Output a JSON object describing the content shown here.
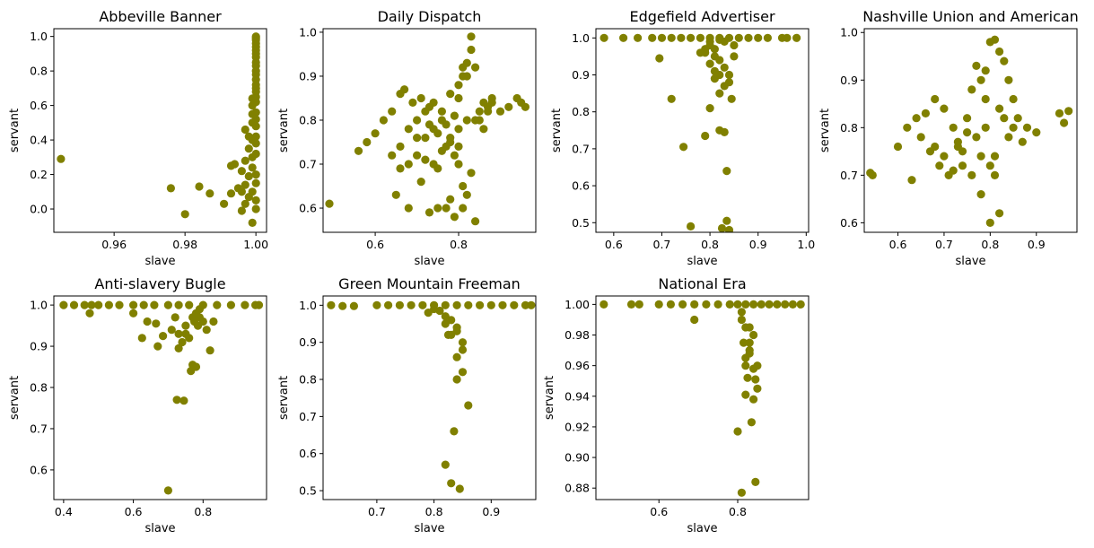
{
  "marker_color": "#808000",
  "chart_data": [
    {
      "type": "scatter",
      "title": "Abbeville Banner",
      "xlabel": "slave",
      "ylabel": "servant",
      "xlim": [
        0.943,
        1.003
      ],
      "ylim": [
        -0.135,
        1.045
      ],
      "xticks": [
        0.96,
        0.98,
        1.0
      ],
      "xtick_labels": [
        "0.96",
        "0.98",
        "1.00"
      ],
      "yticks": [
        0.0,
        0.2,
        0.4,
        0.6,
        0.8,
        1.0
      ],
      "ytick_labels": [
        "0.0",
        "0.2",
        "0.4",
        "0.6",
        "0.8",
        "1.0"
      ],
      "grid": false,
      "x": [
        0.945,
        0.976,
        0.98,
        0.984,
        0.987,
        0.991,
        0.993,
        0.993,
        0.994,
        0.995,
        0.996,
        0.996,
        0.997,
        0.997,
        0.998,
        0.998,
        0.998,
        0.999,
        0.999,
        0.999,
        0.999,
        0.999,
        0.999,
        0.999,
        0.999,
        1.0,
        1.0,
        1.0,
        1.0,
        1.0,
        1.0,
        1.0,
        1.0,
        1.0,
        1.0,
        1.0,
        1.0,
        1.0,
        1.0,
        1.0,
        1.0,
        1.0,
        1.0,
        1.0,
        1.0,
        1.0,
        1.0,
        1.0,
        1.0,
        1.0,
        1.0,
        1.0,
        1.0,
        0.999,
        0.998,
        0.997,
        0.997,
        0.996
      ],
      "y": [
        0.29,
        0.12,
        -0.03,
        0.13,
        0.09,
        0.03,
        0.09,
        0.25,
        0.26,
        0.12,
        -0.01,
        0.1,
        0.03,
        0.46,
        0.07,
        0.19,
        0.35,
        -0.08,
        0.1,
        0.4,
        0.5,
        0.55,
        0.24,
        0.3,
        0.6,
        0.0,
        0.05,
        0.15,
        0.2,
        0.32,
        0.38,
        0.42,
        0.48,
        0.52,
        0.56,
        0.62,
        0.65,
        0.68,
        0.7,
        0.72,
        0.75,
        0.78,
        0.8,
        0.83,
        0.85,
        0.88,
        0.9,
        0.92,
        0.94,
        0.96,
        0.98,
        1.0,
        0.99,
        0.64,
        0.42,
        0.28,
        0.14,
        0.22
      ]
    },
    {
      "type": "scatter",
      "title": "Daily Dispatch",
      "xlabel": "slave",
      "ylabel": "servant",
      "xlim": [
        0.475,
        0.985
      ],
      "ylim": [
        0.545,
        1.008
      ],
      "xticks": [
        0.6,
        0.8
      ],
      "xtick_labels": [
        "0.6",
        "0.8"
      ],
      "yticks": [
        0.6,
        0.7,
        0.8,
        0.9,
        1.0
      ],
      "ytick_labels": [
        "0.6",
        "0.7",
        "0.8",
        "0.9",
        "1.0"
      ],
      "grid": false,
      "x": [
        0.49,
        0.56,
        0.58,
        0.6,
        0.62,
        0.64,
        0.65,
        0.66,
        0.66,
        0.67,
        0.68,
        0.68,
        0.69,
        0.7,
        0.7,
        0.71,
        0.71,
        0.72,
        0.72,
        0.73,
        0.73,
        0.74,
        0.74,
        0.75,
        0.75,
        0.76,
        0.76,
        0.77,
        0.77,
        0.78,
        0.78,
        0.79,
        0.79,
        0.8,
        0.8,
        0.81,
        0.81,
        0.82,
        0.82,
        0.83,
        0.83,
        0.84,
        0.85,
        0.86,
        0.87,
        0.88,
        0.9,
        0.92,
        0.94,
        0.95,
        0.96,
        0.74,
        0.76,
        0.78,
        0.8,
        0.82,
        0.84,
        0.79,
        0.81,
        0.83,
        0.8,
        0.82,
        0.75,
        0.77,
        0.72,
        0.7,
        0.73,
        0.78,
        0.8,
        0.81,
        0.84,
        0.86,
        0.66,
        0.68,
        0.64,
        0.85,
        0.87,
        0.88
      ],
      "y": [
        0.61,
        0.73,
        0.75,
        0.77,
        0.8,
        0.82,
        0.63,
        0.86,
        0.69,
        0.87,
        0.6,
        0.78,
        0.84,
        0.72,
        0.8,
        0.66,
        0.85,
        0.76,
        0.82,
        0.59,
        0.79,
        0.7,
        0.84,
        0.6,
        0.77,
        0.73,
        0.82,
        0.6,
        0.79,
        0.62,
        0.75,
        0.58,
        0.81,
        0.7,
        0.85,
        0.6,
        0.92,
        0.63,
        0.93,
        0.96,
        0.99,
        0.57,
        0.82,
        0.84,
        0.83,
        0.85,
        0.82,
        0.83,
        0.85,
        0.84,
        0.83,
        0.78,
        0.8,
        0.76,
        0.88,
        0.9,
        0.92,
        0.72,
        0.65,
        0.68,
        0.78,
        0.8,
        0.69,
        0.74,
        0.71,
        0.76,
        0.83,
        0.86,
        0.74,
        0.9,
        0.8,
        0.78,
        0.74,
        0.7,
        0.72,
        0.8,
        0.82,
        0.84
      ]
    },
    {
      "type": "scatter",
      "title": "Edgefield Advertiser",
      "xlabel": "slave",
      "ylabel": "servant",
      "xlim": [
        0.563,
        1.005
      ],
      "ylim": [
        0.474,
        1.025
      ],
      "xticks": [
        0.6,
        0.7,
        0.8,
        0.9,
        1.0
      ],
      "xtick_labels": [
        "0.6",
        "0.7",
        "0.8",
        "0.9",
        "1.0"
      ],
      "yticks": [
        0.5,
        0.6,
        0.7,
        0.8,
        0.9,
        1.0
      ],
      "ytick_labels": [
        "0.5",
        "0.6",
        "0.7",
        "0.8",
        "0.9",
        "1.0"
      ],
      "grid": false,
      "x": [
        0.58,
        0.62,
        0.65,
        0.68,
        0.7,
        0.72,
        0.74,
        0.76,
        0.78,
        0.8,
        0.82,
        0.84,
        0.86,
        0.88,
        0.9,
        0.92,
        0.95,
        0.96,
        0.98,
        0.695,
        0.72,
        0.745,
        0.76,
        0.79,
        0.8,
        0.82,
        0.825,
        0.83,
        0.835,
        0.835,
        0.84,
        0.845,
        0.82,
        0.81,
        0.8,
        0.79,
        0.83,
        0.84,
        0.85,
        0.82,
        0.81,
        0.83,
        0.8,
        0.82,
        0.83,
        0.79,
        0.81,
        0.84,
        0.78,
        0.85,
        0.8,
        0.82,
        0.81
      ],
      "y": [
        1.0,
        1.0,
        1.0,
        1.0,
        1.0,
        1.0,
        1.0,
        1.0,
        1.0,
        1.0,
        1.0,
        1.0,
        1.0,
        1.0,
        1.0,
        1.0,
        1.0,
        1.0,
        1.0,
        0.945,
        0.835,
        0.705,
        0.49,
        0.735,
        0.81,
        0.75,
        0.485,
        0.745,
        0.64,
        0.505,
        0.48,
        0.835,
        0.85,
        0.89,
        0.93,
        0.96,
        0.87,
        0.88,
        0.95,
        0.9,
        0.97,
        0.99,
        0.98,
        0.94,
        0.92,
        0.97,
        0.95,
        0.9,
        0.96,
        0.98,
        0.99,
        0.995,
        0.91
      ]
    },
    {
      "type": "scatter",
      "title": "Nashville Union and American",
      "xlabel": "slave",
      "ylabel": "servant",
      "xlim": [
        0.527,
        0.988
      ],
      "ylim": [
        0.58,
        1.008
      ],
      "xticks": [
        0.6,
        0.7,
        0.8,
        0.9
      ],
      "xtick_labels": [
        "0.6",
        "0.7",
        "0.8",
        "0.9"
      ],
      "yticks": [
        0.6,
        0.7,
        0.8,
        0.9,
        1.0
      ],
      "ytick_labels": [
        "0.6",
        "0.7",
        "0.8",
        "0.9",
        "1.0"
      ],
      "grid": false,
      "x": [
        0.54,
        0.545,
        0.6,
        0.62,
        0.63,
        0.64,
        0.65,
        0.66,
        0.67,
        0.68,
        0.69,
        0.7,
        0.71,
        0.72,
        0.73,
        0.74,
        0.75,
        0.76,
        0.77,
        0.78,
        0.79,
        0.8,
        0.81,
        0.82,
        0.83,
        0.84,
        0.85,
        0.86,
        0.88,
        0.9,
        0.95,
        0.96,
        0.97,
        0.8,
        0.81,
        0.82,
        0.78,
        0.79,
        0.77,
        0.83,
        0.84,
        0.76,
        0.74,
        0.72,
        0.7,
        0.68,
        0.85,
        0.87,
        0.8,
        0.81,
        0.79,
        0.82,
        0.78,
        0.75,
        0.73
      ],
      "y": [
        0.705,
        0.7,
        0.76,
        0.8,
        0.69,
        0.82,
        0.78,
        0.83,
        0.75,
        0.86,
        0.72,
        0.84,
        0.7,
        0.8,
        0.76,
        0.72,
        0.82,
        0.7,
        0.78,
        0.66,
        0.8,
        0.6,
        0.74,
        0.62,
        0.82,
        0.78,
        0.8,
        0.82,
        0.8,
        0.79,
        0.83,
        0.81,
        0.835,
        0.98,
        0.985,
        0.96,
        0.9,
        0.92,
        0.93,
        0.94,
        0.9,
        0.88,
        0.75,
        0.71,
        0.74,
        0.76,
        0.86,
        0.77,
        0.72,
        0.7,
        0.86,
        0.84,
        0.74,
        0.79,
        0.77
      ]
    },
    {
      "type": "scatter",
      "title": "Anti-slavery Bugle",
      "xlabel": "slave",
      "ylabel": "servant",
      "xlim": [
        0.372,
        0.982
      ],
      "ylim": [
        0.528,
        1.022
      ],
      "xticks": [
        0.4,
        0.6,
        0.8
      ],
      "xtick_labels": [
        "0.4",
        "0.6",
        "0.8"
      ],
      "yticks": [
        0.6,
        0.7,
        0.8,
        0.9,
        1.0
      ],
      "ytick_labels": [
        "0.6",
        "0.7",
        "0.8",
        "0.9",
        "1.0"
      ],
      "grid": false,
      "x": [
        0.4,
        0.43,
        0.46,
        0.48,
        0.5,
        0.53,
        0.56,
        0.6,
        0.63,
        0.66,
        0.7,
        0.73,
        0.76,
        0.8,
        0.84,
        0.88,
        0.92,
        0.95,
        0.96,
        0.475,
        0.6,
        0.625,
        0.64,
        0.665,
        0.67,
        0.685,
        0.7,
        0.71,
        0.725,
        0.73,
        0.745,
        0.75,
        0.765,
        0.77,
        0.775,
        0.78,
        0.785,
        0.79,
        0.8,
        0.82,
        0.74,
        0.76,
        0.78,
        0.72,
        0.81,
        0.79,
        0.77,
        0.83,
        0.75,
        0.73
      ],
      "y": [
        1.0,
        1.0,
        1.0,
        1.0,
        1.0,
        1.0,
        1.0,
        1.0,
        1.0,
        1.0,
        1.0,
        1.0,
        1.0,
        1.0,
        1.0,
        1.0,
        1.0,
        1.0,
        1.0,
        0.98,
        0.98,
        0.92,
        0.96,
        0.955,
        0.9,
        0.925,
        0.55,
        0.94,
        0.77,
        0.895,
        0.768,
        0.93,
        0.84,
        0.855,
        0.96,
        0.85,
        0.95,
        0.97,
        0.96,
        0.89,
        0.91,
        0.92,
        0.98,
        0.97,
        0.94,
        0.99,
        0.97,
        0.96,
        0.95,
        0.93
      ]
    },
    {
      "type": "scatter",
      "title": "Green Mountain Freeman",
      "xlabel": "slave",
      "ylabel": "servant",
      "xlim": [
        0.606,
        0.978
      ],
      "ylim": [
        0.476,
        1.025
      ],
      "xticks": [
        0.7,
        0.8,
        0.9
      ],
      "xtick_labels": [
        "0.7",
        "0.8",
        "0.9"
      ],
      "yticks": [
        0.5,
        0.6,
        0.7,
        0.8,
        0.9,
        1.0
      ],
      "ytick_labels": [
        "0.5",
        "0.6",
        "0.7",
        "0.8",
        "0.9",
        "1.0"
      ],
      "grid": false,
      "x": [
        0.62,
        0.64,
        0.66,
        0.7,
        0.72,
        0.74,
        0.76,
        0.78,
        0.8,
        0.82,
        0.84,
        0.86,
        0.88,
        0.9,
        0.92,
        0.94,
        0.96,
        0.97,
        0.79,
        0.8,
        0.82,
        0.825,
        0.83,
        0.835,
        0.84,
        0.84,
        0.845,
        0.85,
        0.86,
        0.83,
        0.84,
        0.82,
        0.85,
        0.81,
        0.83,
        0.84,
        0.85,
        0.82
      ],
      "y": [
        1.0,
        0.998,
        0.998,
        1.0,
        1.0,
        1.0,
        1.0,
        1.0,
        1.0,
        1.0,
        1.0,
        1.0,
        1.0,
        1.0,
        1.0,
        1.0,
        1.0,
        1.0,
        0.98,
        0.99,
        0.57,
        0.92,
        0.52,
        0.66,
        0.86,
        0.8,
        0.505,
        0.82,
        0.73,
        0.92,
        0.94,
        0.97,
        0.9,
        0.985,
        0.96,
        0.93,
        0.88,
        0.95
      ]
    },
    {
      "type": "scatter",
      "title": "National Era",
      "xlabel": "slave",
      "ylabel": "servant",
      "xlim": [
        0.44,
        0.98
      ],
      "ylim": [
        0.8725,
        1.0055
      ],
      "xticks": [
        0.6,
        0.8
      ],
      "xtick_labels": [
        "0.6",
        "0.8"
      ],
      "yticks": [
        0.88,
        0.9,
        0.92,
        0.94,
        0.96,
        0.98,
        1.0
      ],
      "ytick_labels": [
        "0.88",
        "0.90",
        "0.92",
        "0.94",
        "0.96",
        "0.98",
        "1.00"
      ],
      "grid": false,
      "x": [
        0.46,
        0.53,
        0.55,
        0.6,
        0.63,
        0.66,
        0.69,
        0.72,
        0.75,
        0.78,
        0.8,
        0.82,
        0.84,
        0.86,
        0.88,
        0.9,
        0.92,
        0.94,
        0.96,
        0.69,
        0.8,
        0.81,
        0.815,
        0.82,
        0.825,
        0.83,
        0.835,
        0.84,
        0.845,
        0.845,
        0.85,
        0.82,
        0.83,
        0.84,
        0.81,
        0.83,
        0.82,
        0.84,
        0.83,
        0.81,
        0.82,
        0.85
      ],
      "y": [
        1.0,
        1.0,
        1.0,
        1.0,
        1.0,
        1.0,
        1.0,
        1.0,
        1.0,
        1.0,
        1.0,
        1.0,
        1.0,
        1.0,
        1.0,
        1.0,
        1.0,
        1.0,
        1.0,
        0.99,
        0.917,
        0.877,
        0.975,
        0.941,
        0.952,
        0.968,
        0.923,
        0.938,
        0.884,
        0.951,
        0.945,
        0.96,
        0.97,
        0.98,
        0.99,
        0.985,
        0.965,
        0.958,
        0.975,
        0.995,
        0.985,
        0.96
      ]
    }
  ]
}
